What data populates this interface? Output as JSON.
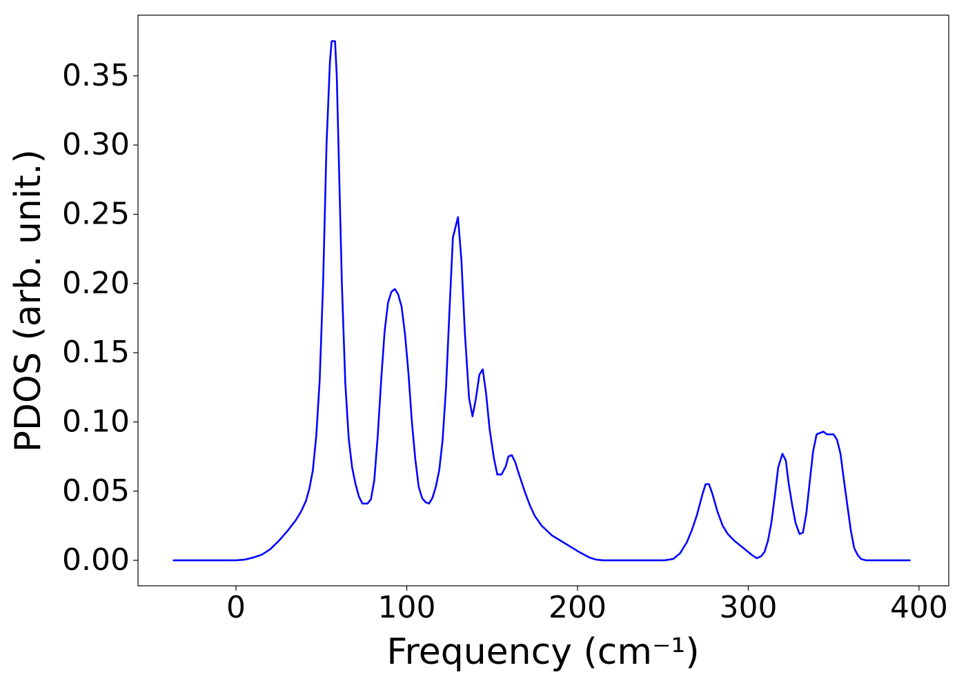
{
  "chart_data": {
    "type": "line",
    "xlabel": "Frequency (cm⁻¹)",
    "ylabel": "PDOS (arb. unit.)",
    "color": "#0000ff",
    "grid": false,
    "xlim": [
      -57.4,
      417.4
    ],
    "ylim": [
      -0.0184,
      0.3938
    ],
    "xticks": [
      0,
      100,
      200,
      300,
      400
    ],
    "yticks": [
      {
        "value": 0,
        "label": "0.00"
      },
      0.05,
      {
        "value": 0.1,
        "label": "0.10"
      },
      0.15,
      {
        "value": 0.2,
        "label": "0.20"
      },
      0.25,
      {
        "value": 0.3,
        "label": "0.30"
      },
      0.35
    ],
    "x": [
      -37,
      -20,
      0,
      5,
      10,
      15,
      20,
      25,
      30,
      35,
      38,
      41,
      43,
      45,
      47,
      49,
      51,
      53,
      55,
      56,
      58,
      59,
      60,
      62,
      64,
      66,
      68,
      70,
      72,
      74,
      77,
      79,
      81,
      83,
      85,
      87,
      89,
      91,
      93,
      95,
      97,
      99,
      101,
      103,
      105,
      107,
      109,
      111,
      113,
      115,
      117,
      119,
      121,
      123,
      125,
      127,
      130,
      132,
      134,
      136.5,
      138.5,
      140.5,
      142.5,
      144.5,
      146.5,
      148.5,
      151,
      153,
      155.5,
      158,
      159.5,
      161.5,
      163.5,
      165.5,
      169,
      172,
      175,
      179,
      185,
      193,
      201,
      207,
      211,
      215,
      251,
      256,
      260,
      264,
      267,
      270,
      273,
      275,
      277,
      279,
      282,
      285,
      288,
      292,
      298,
      302,
      305,
      307.5,
      309.5,
      311.5,
      313.5,
      315.5,
      317.5,
      320,
      322,
      323.6,
      325.7,
      327.7,
      330,
      332,
      334,
      336,
      338,
      340,
      342,
      344,
      346,
      348,
      350,
      352,
      354,
      356,
      358,
      360,
      362,
      364,
      366,
      369,
      395
    ],
    "values": [
      0,
      0,
      0,
      0.0005,
      0.002,
      0.004,
      0.008,
      0.014,
      0.021,
      0.029,
      0.035,
      0.043,
      0.052,
      0.065,
      0.09,
      0.13,
      0.2,
      0.3,
      0.36,
      0.375,
      0.375,
      0.35,
      0.3,
      0.2,
      0.128,
      0.088,
      0.067,
      0.055,
      0.046,
      0.041,
      0.041,
      0.044,
      0.058,
      0.09,
      0.13,
      0.165,
      0.186,
      0.194,
      0.196,
      0.192,
      0.183,
      0.163,
      0.135,
      0.1,
      0.073,
      0.053,
      0.045,
      0.042,
      0.041,
      0.045,
      0.053,
      0.065,
      0.087,
      0.125,
      0.18,
      0.233,
      0.248,
      0.217,
      0.165,
      0.117,
      0.104,
      0.117,
      0.134,
      0.138,
      0.12,
      0.095,
      0.074,
      0.062,
      0.062,
      0.068,
      0.075,
      0.076,
      0.071,
      0.063,
      0.05,
      0.04,
      0.032,
      0.025,
      0.018,
      0.012,
      0.006,
      0.002,
      0.0005,
      0,
      0,
      0.001,
      0.005,
      0.013,
      0.022,
      0.033,
      0.047,
      0.055,
      0.055,
      0.048,
      0.035,
      0.025,
      0.019,
      0.014,
      0.008,
      0.004,
      0.0015,
      0.003,
      0.006,
      0.014,
      0.027,
      0.046,
      0.067,
      0.077,
      0.072,
      0.056,
      0.04,
      0.027,
      0.019,
      0.02,
      0.034,
      0.057,
      0.079,
      0.091,
      0.092,
      0.093,
      0.091,
      0.091,
      0.091,
      0.087,
      0.077,
      0.058,
      0.04,
      0.022,
      0.009,
      0.004,
      0.001,
      0,
      0
    ]
  }
}
